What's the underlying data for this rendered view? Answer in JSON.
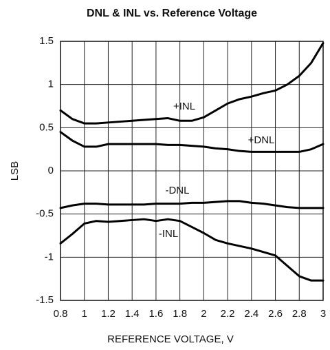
{
  "chart_data": {
    "type": "line",
    "title": "DNL & INL vs. Reference Voltage",
    "x_label": "REFERENCE VOLTAGE, V",
    "y_label": "LSB",
    "x": [
      0.8,
      0.9,
      1.0,
      1.1,
      1.2,
      1.3,
      1.4,
      1.5,
      1.6,
      1.7,
      1.8,
      1.9,
      2.0,
      2.1,
      2.2,
      2.3,
      2.4,
      2.5,
      2.6,
      2.7,
      2.8,
      2.9,
      3.0
    ],
    "series": [
      {
        "name": "+INL",
        "color": "#000000",
        "values": [
          0.7,
          0.6,
          0.55,
          0.55,
          0.56,
          0.57,
          0.58,
          0.59,
          0.6,
          0.61,
          0.58,
          0.58,
          0.62,
          0.7,
          0.78,
          0.83,
          0.86,
          0.9,
          0.93,
          1.0,
          1.1,
          1.25,
          1.48
        ]
      },
      {
        "name": "+DNL",
        "color": "#000000",
        "values": [
          0.45,
          0.35,
          0.28,
          0.28,
          0.31,
          0.31,
          0.31,
          0.31,
          0.31,
          0.3,
          0.3,
          0.29,
          0.28,
          0.26,
          0.25,
          0.23,
          0.22,
          0.22,
          0.22,
          0.22,
          0.22,
          0.25,
          0.31
        ]
      },
      {
        "name": "-DNL",
        "color": "#000000",
        "values": [
          -0.43,
          -0.4,
          -0.38,
          -0.38,
          -0.39,
          -0.39,
          -0.39,
          -0.39,
          -0.38,
          -0.38,
          -0.38,
          -0.37,
          -0.37,
          -0.36,
          -0.35,
          -0.35,
          -0.37,
          -0.38,
          -0.4,
          -0.42,
          -0.43,
          -0.43,
          -0.43
        ]
      },
      {
        "name": "-INL",
        "color": "#000000",
        "values": [
          -0.84,
          -0.73,
          -0.61,
          -0.58,
          -0.59,
          -0.58,
          -0.57,
          -0.56,
          -0.58,
          -0.56,
          -0.58,
          -0.65,
          -0.72,
          -0.8,
          -0.84,
          -0.87,
          -0.9,
          -0.94,
          -0.98,
          -1.1,
          -1.22,
          -1.27,
          -1.27
        ]
      }
    ],
    "xlim": [
      0.8,
      3
    ],
    "ylim": [
      -1.5,
      1.5
    ],
    "xticks": [
      0.8,
      1,
      1.2,
      1.4,
      1.6,
      1.8,
      2,
      2.2,
      2.4,
      2.6,
      2.8,
      3
    ],
    "yticks": [
      -1.5,
      -1,
      -0.5,
      0,
      0.5,
      1,
      1.5
    ],
    "grid": true
  }
}
